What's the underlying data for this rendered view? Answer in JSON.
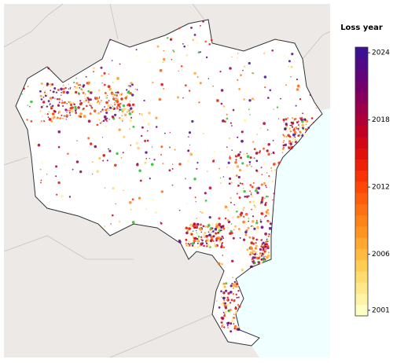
{
  "colorbar": {
    "title": "Loss year",
    "lim": [
      2000.5,
      2024.5
    ],
    "ticks": [
      2001,
      2006,
      2012,
      2018,
      2024
    ],
    "colors": [
      "#ffffc4",
      "#fff3a6",
      "#ffe88a",
      "#ffdc70",
      "#ffcc55",
      "#ffbb40",
      "#ffa830",
      "#ff9520",
      "#ff8418",
      "#ff7012",
      "#ff5c0c",
      "#ff4808",
      "#f83406",
      "#ee2008",
      "#e0100c",
      "#d00816",
      "#c00024",
      "#ae0036",
      "#9c0048",
      "#88005a",
      "#74006c",
      "#62047a",
      "#500a86",
      "#3c1090"
    ]
  }
}
